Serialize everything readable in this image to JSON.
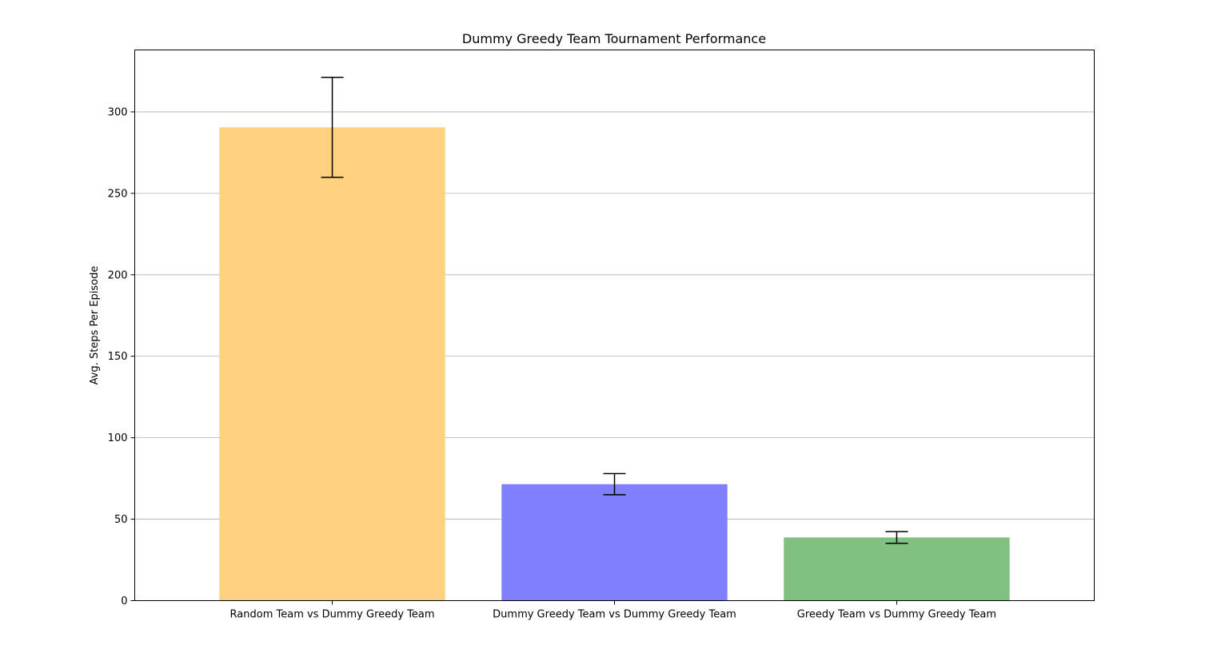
{
  "chart_data": {
    "type": "bar",
    "title": "Dummy Greedy Team Tournament Performance",
    "xlabel": "",
    "ylabel": "Avg. Steps Per Episode",
    "categories": [
      "Random Team vs Dummy Greedy Team",
      "Dummy Greedy Team vs Dummy Greedy Team",
      "Greedy Team vs Dummy Greedy Team"
    ],
    "values": [
      290.5,
      71.5,
      38.8
    ],
    "error_low": [
      259.8,
      65.0,
      35.2
    ],
    "error_high": [
      321.2,
      78.0,
      42.4
    ],
    "colors": [
      "#ffd180",
      "#8080ff",
      "#80c080"
    ],
    "ylim": [
      0,
      338
    ],
    "yticks": [
      0,
      50,
      100,
      150,
      200,
      250,
      300
    ],
    "grid": "horizontal",
    "legend": "none"
  }
}
